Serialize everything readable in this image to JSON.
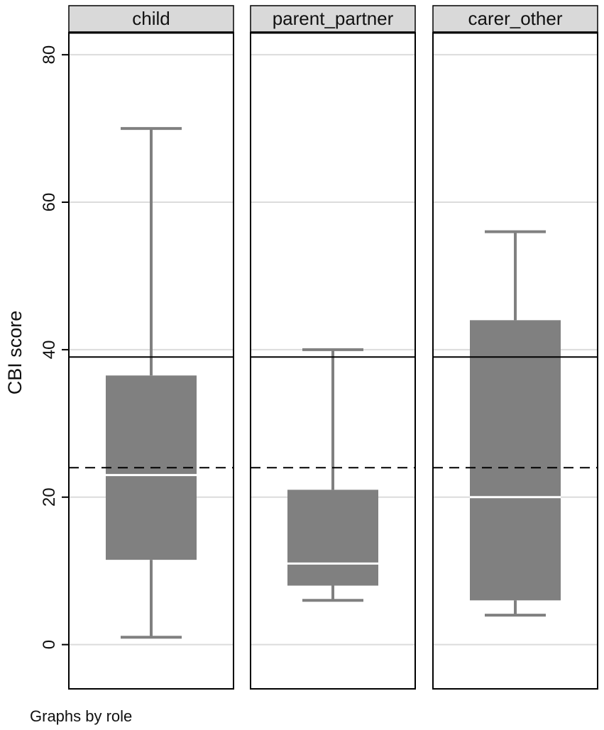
{
  "chart_data": {
    "type": "box",
    "ylabel": "CBI score",
    "note": "Graphs by role",
    "ylim": [
      -6,
      83
    ],
    "yticks": [
      0,
      20,
      40,
      60,
      80
    ],
    "y_tick_labels": [
      "0",
      "20",
      "40",
      "60",
      "80"
    ],
    "grid": true,
    "reference_lines": [
      {
        "value": 39,
        "style": "solid"
      },
      {
        "value": 24,
        "style": "dashed"
      }
    ],
    "panels": [
      {
        "label": "child",
        "min": 1,
        "q1": 11.5,
        "median": 23,
        "q3": 36.5,
        "max": 70
      },
      {
        "label": "parent_partner",
        "min": 6,
        "q1": 8,
        "median": 11,
        "q3": 21,
        "max": 40
      },
      {
        "label": "carer_other",
        "min": 4,
        "q1": 6,
        "median": 20,
        "q3": 44,
        "max": 56
      }
    ],
    "colors": {
      "box": "#808080",
      "whisker": "#808080",
      "median": "#ffffff",
      "grid": "#dcdcdc",
      "strip": "#d9d9d9",
      "reference": "#000000"
    }
  }
}
